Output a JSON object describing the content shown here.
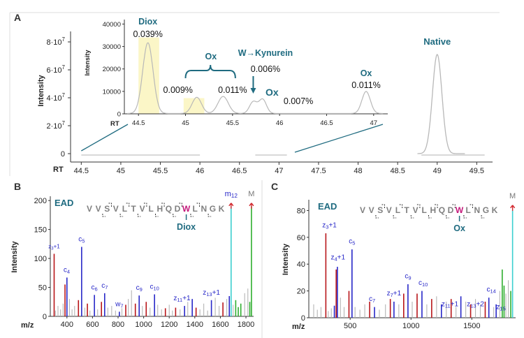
{
  "chart_data": [
    {
      "id": "A_main",
      "panel": "A",
      "type": "line",
      "ylabel": "Intensity",
      "xlabel": "RT",
      "xlim": [
        44.4,
        49.7
      ],
      "ylim": [
        0,
        90000000
      ],
      "x_ticks": [
        44.5,
        45,
        45.5,
        46,
        46.5,
        47,
        47.5,
        48,
        48.5,
        49,
        49.5
      ],
      "y_ticks": [
        {
          "value": 0,
          "label": "0"
        },
        {
          "value": 20000000,
          "label": "2·10⁷"
        },
        {
          "value": 40000000,
          "label": "4·10⁷"
        },
        {
          "value": 60000000,
          "label": "6·10⁷"
        },
        {
          "value": 80000000,
          "label": "8·10⁷"
        }
      ],
      "peaks": [
        {
          "center": 49.0,
          "height": 71000000,
          "width": 0.06
        }
      ],
      "annotations": [
        {
          "text": "Native",
          "x": 49.0,
          "y": 76000000
        }
      ]
    },
    {
      "id": "A_inset",
      "panel": "A",
      "type": "line",
      "ylabel": "Intensity",
      "xlabel": "RT",
      "xlim": [
        44.35,
        47.15
      ],
      "ylim": [
        0,
        42000
      ],
      "x_ticks": [
        44.5,
        45,
        45.5,
        46,
        46.5,
        47
      ],
      "y_ticks": [
        0,
        10000,
        20000,
        30000,
        40000
      ],
      "peaks": [
        {
          "center": 44.6,
          "height": 31500,
          "width": 0.055
        },
        {
          "center": 45.12,
          "height": 7200,
          "width": 0.05
        },
        {
          "center": 45.4,
          "height": 7600,
          "width": 0.055
        },
        {
          "center": 45.72,
          "height": 5200,
          "width": 0.04
        },
        {
          "center": 45.82,
          "height": 6300,
          "width": 0.04
        },
        {
          "center": 46.92,
          "height": 9800,
          "width": 0.045
        }
      ],
      "highlights": [
        [
          44.5,
          44.72
        ],
        [
          44.98,
          45.2
        ]
      ],
      "labels": {
        "diox": "Diox",
        "diox_pct": "0.039%",
        "ox": "Ox",
        "ox_pct1": "0.009%",
        "ox_pct2": "0.011%",
        "kyn": "W→Kynurein",
        "kyn_pct": "0.006%",
        "ox2": "Ox",
        "ox2_pct": "0.007%",
        "ox3": "Ox",
        "ox3_pct": "0.011%"
      }
    },
    {
      "id": "B",
      "panel": "B",
      "type": "bar",
      "title": "EAD",
      "ylabel": "Intensity",
      "xlabel": "m/z",
      "xlim": [
        270,
        1860
      ],
      "ylim": [
        0,
        205
      ],
      "x_ticks": [
        400,
        600,
        800,
        1000,
        1200,
        1400,
        1600,
        1800
      ],
      "y_ticks": [
        0,
        50,
        100,
        150,
        200
      ],
      "peaks": [
        {
          "mz": 300,
          "i": 108,
          "c": "red"
        },
        {
          "mz": 310,
          "i": 10,
          "c": "gray"
        },
        {
          "mz": 330,
          "i": 18,
          "c": "gray"
        },
        {
          "mz": 350,
          "i": 12,
          "c": "gray"
        },
        {
          "mz": 370,
          "i": 22,
          "c": "gray"
        },
        {
          "mz": 385,
          "i": 55,
          "c": "red"
        },
        {
          "mz": 400,
          "i": 67,
          "c": "blue"
        },
        {
          "mz": 420,
          "i": 30,
          "c": "gray"
        },
        {
          "mz": 440,
          "i": 12,
          "c": "gray"
        },
        {
          "mz": 460,
          "i": 18,
          "c": "gray"
        },
        {
          "mz": 490,
          "i": 28,
          "c": "red"
        },
        {
          "mz": 515,
          "i": 120,
          "c": "blue"
        },
        {
          "mz": 540,
          "i": 15,
          "c": "gray"
        },
        {
          "mz": 560,
          "i": 22,
          "c": "red"
        },
        {
          "mz": 580,
          "i": 10,
          "c": "gray"
        },
        {
          "mz": 615,
          "i": 37,
          "c": "blue"
        },
        {
          "mz": 640,
          "i": 12,
          "c": "gray"
        },
        {
          "mz": 670,
          "i": 25,
          "c": "red"
        },
        {
          "mz": 695,
          "i": 40,
          "c": "blue"
        },
        {
          "mz": 720,
          "i": 15,
          "c": "gray"
        },
        {
          "mz": 750,
          "i": 18,
          "c": "gray"
        },
        {
          "mz": 780,
          "i": 10,
          "c": "gray"
        },
        {
          "mz": 810,
          "i": 8,
          "c": "blue"
        },
        {
          "mz": 830,
          "i": 14,
          "c": "gray"
        },
        {
          "mz": 860,
          "i": 20,
          "c": "red"
        },
        {
          "mz": 880,
          "i": 30,
          "c": "gray"
        },
        {
          "mz": 905,
          "i": 45,
          "c": "gray"
        },
        {
          "mz": 935,
          "i": 22,
          "c": "red"
        },
        {
          "mz": 965,
          "i": 36,
          "c": "blue"
        },
        {
          "mz": 990,
          "i": 18,
          "c": "gray"
        },
        {
          "mz": 1020,
          "i": 25,
          "c": "red"
        },
        {
          "mz": 1050,
          "i": 15,
          "c": "gray"
        },
        {
          "mz": 1085,
          "i": 38,
          "c": "blue"
        },
        {
          "mz": 1110,
          "i": 20,
          "c": "gray"
        },
        {
          "mz": 1140,
          "i": 12,
          "c": "gray"
        },
        {
          "mz": 1170,
          "i": 14,
          "c": "red"
        },
        {
          "mz": 1200,
          "i": 20,
          "c": "gray"
        },
        {
          "mz": 1225,
          "i": 10,
          "c": "gray"
        },
        {
          "mz": 1250,
          "i": 15,
          "c": "red"
        },
        {
          "mz": 1285,
          "i": 12,
          "c": "gray"
        },
        {
          "mz": 1320,
          "i": 18,
          "c": "blue"
        },
        {
          "mz": 1345,
          "i": 25,
          "c": "gray"
        },
        {
          "mz": 1380,
          "i": 30,
          "c": "blue"
        },
        {
          "mz": 1410,
          "i": 15,
          "c": "red"
        },
        {
          "mz": 1440,
          "i": 12,
          "c": "gray"
        },
        {
          "mz": 1470,
          "i": 22,
          "c": "gray"
        },
        {
          "mz": 1500,
          "i": 10,
          "c": "gray"
        },
        {
          "mz": 1530,
          "i": 28,
          "c": "blue"
        },
        {
          "mz": 1560,
          "i": 32,
          "c": "gray"
        },
        {
          "mz": 1590,
          "i": 18,
          "c": "gray"
        },
        {
          "mz": 1620,
          "i": 24,
          "c": "red"
        },
        {
          "mz": 1650,
          "i": 30,
          "c": "gray"
        },
        {
          "mz": 1670,
          "i": 35,
          "c": "blue"
        },
        {
          "mz": 1684,
          "i": 190,
          "c": "cyan"
        },
        {
          "mz": 1700,
          "i": 20,
          "c": "gray"
        },
        {
          "mz": 1720,
          "i": 28,
          "c": "green"
        },
        {
          "mz": 1740,
          "i": 16,
          "c": "green"
        },
        {
          "mz": 1760,
          "i": 22,
          "c": "green"
        },
        {
          "mz": 1790,
          "i": 40,
          "c": "gray"
        },
        {
          "mz": 1815,
          "i": 48,
          "c": "gray"
        },
        {
          "mz": 1830,
          "i": 25,
          "c": "green"
        },
        {
          "mz": 1843,
          "i": 190,
          "c": "green"
        }
      ],
      "ion_labels": [
        {
          "text": "z3+1",
          "mz": 300,
          "i": 114,
          "c": "blue",
          "sz": 8
        },
        {
          "text": "c4",
          "mz": 398,
          "i": 73,
          "c": "blue"
        },
        {
          "text": "c5",
          "mz": 515,
          "i": 126,
          "c": "blue"
        },
        {
          "text": "c6",
          "mz": 615,
          "i": 43,
          "c": "blue"
        },
        {
          "text": "c7",
          "mz": 695,
          "i": 46,
          "c": "blue"
        },
        {
          "text": "w7",
          "mz": 810,
          "i": 14,
          "c": "blue"
        },
        {
          "text": "c9",
          "mz": 965,
          "i": 42,
          "c": "blue"
        },
        {
          "text": "c10",
          "mz": 1085,
          "i": 44,
          "c": "blue"
        },
        {
          "text": "z11+1",
          "mz": 1300,
          "i": 24,
          "c": "blue"
        },
        {
          "text": "z13+1",
          "mz": 1530,
          "i": 34,
          "c": "blue"
        },
        {
          "text": "m12",
          "mz": 1684,
          "i": 198,
          "c": "blue"
        },
        {
          "text": "M",
          "mz": 1843,
          "i": 198,
          "c": "gray"
        }
      ],
      "sequence": [
        "V",
        "V",
        "S",
        "V",
        "L",
        "T",
        "V",
        "L",
        "H",
        "Q",
        "D",
        "W",
        "L",
        "N",
        "G",
        "K"
      ],
      "modified_index": 11,
      "mod_label": "Diox"
    },
    {
      "id": "C",
      "panel": "C",
      "type": "bar",
      "title": "EAD",
      "ylabel": "Intensity",
      "xlabel": "m/z",
      "xlim": [
        160,
        1860
      ],
      "ylim": [
        0,
        87
      ],
      "x_ticks": [
        500,
        1000,
        1500
      ],
      "y_ticks": [
        0,
        20,
        40,
        60,
        80
      ],
      "peaks": [
        {
          "mz": 200,
          "i": 10,
          "c": "gray"
        },
        {
          "mz": 230,
          "i": 6,
          "c": "gray"
        },
        {
          "mz": 260,
          "i": 8,
          "c": "gray"
        },
        {
          "mz": 300,
          "i": 63,
          "c": "red"
        },
        {
          "mz": 320,
          "i": 5,
          "c": "gray"
        },
        {
          "mz": 345,
          "i": 7,
          "c": "gray"
        },
        {
          "mz": 370,
          "i": 9,
          "c": "blue"
        },
        {
          "mz": 385,
          "i": 36,
          "c": "red"
        },
        {
          "mz": 395,
          "i": 38,
          "c": "blue"
        },
        {
          "mz": 420,
          "i": 15,
          "c": "gray"
        },
        {
          "mz": 450,
          "i": 8,
          "c": "gray"
        },
        {
          "mz": 490,
          "i": 20,
          "c": "red"
        },
        {
          "mz": 515,
          "i": 51,
          "c": "blue"
        },
        {
          "mz": 540,
          "i": 8,
          "c": "gray"
        },
        {
          "mz": 580,
          "i": 6,
          "c": "gray"
        },
        {
          "mz": 620,
          "i": 10,
          "c": "gray"
        },
        {
          "mz": 660,
          "i": 12,
          "c": "red"
        },
        {
          "mz": 700,
          "i": 8,
          "c": "blue"
        },
        {
          "mz": 740,
          "i": 6,
          "c": "gray"
        },
        {
          "mz": 790,
          "i": 10,
          "c": "gray"
        },
        {
          "mz": 830,
          "i": 14,
          "c": "red"
        },
        {
          "mz": 860,
          "i": 12,
          "c": "blue"
        },
        {
          "mz": 900,
          "i": 10,
          "c": "gray"
        },
        {
          "mz": 940,
          "i": 18,
          "c": "red"
        },
        {
          "mz": 975,
          "i": 25,
          "c": "blue"
        },
        {
          "mz": 1010,
          "i": 12,
          "c": "gray"
        },
        {
          "mz": 1050,
          "i": 18,
          "c": "red"
        },
        {
          "mz": 1090,
          "i": 20,
          "c": "blue"
        },
        {
          "mz": 1130,
          "i": 10,
          "c": "gray"
        },
        {
          "mz": 1170,
          "i": 14,
          "c": "red"
        },
        {
          "mz": 1210,
          "i": 16,
          "c": "gray"
        },
        {
          "mz": 1250,
          "i": 10,
          "c": "blue"
        },
        {
          "mz": 1290,
          "i": 12,
          "c": "gray"
        },
        {
          "mz": 1330,
          "i": 14,
          "c": "red"
        },
        {
          "mz": 1370,
          "i": 8,
          "c": "gray"
        },
        {
          "mz": 1410,
          "i": 16,
          "c": "blue"
        },
        {
          "mz": 1450,
          "i": 12,
          "c": "gray"
        },
        {
          "mz": 1490,
          "i": 10,
          "c": "red"
        },
        {
          "mz": 1530,
          "i": 14,
          "c": "gray"
        },
        {
          "mz": 1570,
          "i": 10,
          "c": "gray"
        },
        {
          "mz": 1610,
          "i": 12,
          "c": "red"
        },
        {
          "mz": 1640,
          "i": 15,
          "c": "blue"
        },
        {
          "mz": 1680,
          "i": 8,
          "c": "gray"
        },
        {
          "mz": 1700,
          "i": 10,
          "c": "blue"
        },
        {
          "mz": 1730,
          "i": 20,
          "c": "gray"
        },
        {
          "mz": 1750,
          "i": 36,
          "c": "green"
        },
        {
          "mz": 1765,
          "i": 24,
          "c": "green"
        },
        {
          "mz": 1780,
          "i": 18,
          "c": "gray"
        },
        {
          "mz": 1800,
          "i": 28,
          "c": "gray"
        },
        {
          "mz": 1820,
          "i": 20,
          "c": "green"
        },
        {
          "mz": 1835,
          "i": 80,
          "c": "cyan"
        }
      ],
      "ion_labels": [
        {
          "text": "z3+1",
          "mz": 330,
          "i": 66,
          "c": "blue"
        },
        {
          "text": "z4+1",
          "mz": 400,
          "i": 42,
          "c": "blue"
        },
        {
          "text": "c5",
          "mz": 515,
          "i": 54,
          "c": "blue"
        },
        {
          "text": "c7",
          "mz": 680,
          "i": 11,
          "c": "blue"
        },
        {
          "text": "z7+1",
          "mz": 860,
          "i": 15,
          "c": "blue"
        },
        {
          "text": "c9",
          "mz": 975,
          "i": 28,
          "c": "blue"
        },
        {
          "text": "c10",
          "mz": 1100,
          "i": 23,
          "c": "blue"
        },
        {
          "text": "z11+1",
          "mz": 1320,
          "i": 7,
          "c": "blue"
        },
        {
          "text": "z13+2",
          "mz": 1530,
          "i": 7,
          "c": "blue"
        },
        {
          "text": "c14",
          "mz": 1660,
          "i": 18,
          "c": "blue"
        },
        {
          "text": "z15",
          "mz": 1740,
          "i": 5,
          "c": "blue"
        },
        {
          "text": "M",
          "mz": 1835,
          "i": 85,
          "c": "gray"
        }
      ],
      "sequence": [
        "V",
        "V",
        "S",
        "V",
        "L",
        "T",
        "V",
        "L",
        "H",
        "Q",
        "D",
        "W",
        "L",
        "N",
        "G",
        "K"
      ],
      "modified_index": 11,
      "mod_label": "Ox"
    }
  ],
  "panels": {
    "a": "A",
    "b": "B",
    "c": "C"
  },
  "colors": {
    "teal": "#1f6b80",
    "highlight": "#fbf6c7",
    "trace": "#b8b8b8",
    "blue": "#2727c8",
    "red": "#b8161a",
    "cyan": "#3ccfcf",
    "green": "#2fae2f",
    "gray": "#b5b5b5",
    "magenta": "#c4197b"
  }
}
